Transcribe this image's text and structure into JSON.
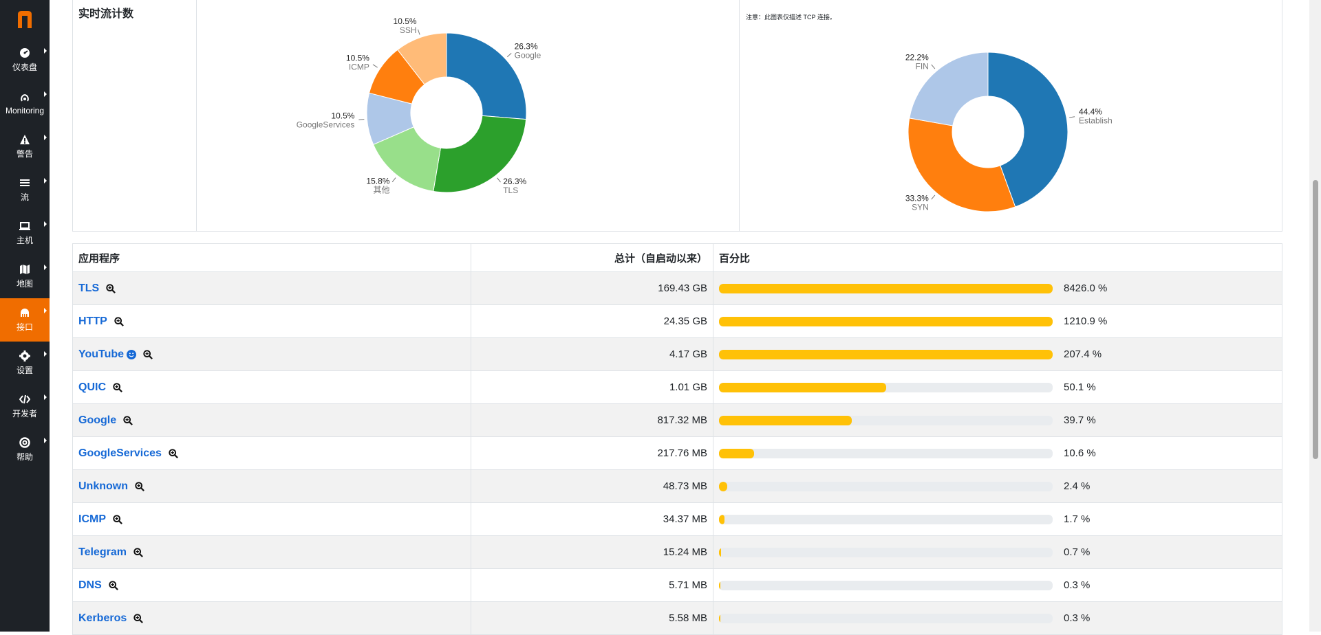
{
  "sidebar": {
    "logo_letter": "n",
    "items": [
      {
        "label": "仪表盘",
        "icon": "dashboard-icon",
        "active": false
      },
      {
        "label": "Monitoring",
        "icon": "monitoring-icon",
        "active": false
      },
      {
        "label": "警告",
        "icon": "warning-icon",
        "active": false
      },
      {
        "label": "流",
        "icon": "flows-icon",
        "active": false
      },
      {
        "label": "主机",
        "icon": "hosts-icon",
        "active": false
      },
      {
        "label": "地图",
        "icon": "map-icon",
        "active": false
      },
      {
        "label": "接口",
        "icon": "interface-icon",
        "active": true
      },
      {
        "label": "设置",
        "icon": "settings-icon",
        "active": false
      },
      {
        "label": "开发者",
        "icon": "developer-icon",
        "active": false
      },
      {
        "label": "帮助",
        "icon": "help-icon",
        "active": false
      }
    ]
  },
  "realtime": {
    "title": "实时流计数",
    "note": "注意：此图表仅描述 TCP 连接。"
  },
  "chart_data": [
    {
      "type": "pie",
      "variant": "donut",
      "slices": [
        {
          "label": "Google",
          "pct": 26.3,
          "pct_label": "26.3%",
          "color": "#1f77b4"
        },
        {
          "label": "TLS",
          "pct": 26.3,
          "pct_label": "26.3%",
          "color": "#2ca02c"
        },
        {
          "label": "其他",
          "pct": 15.8,
          "pct_label": "15.8%",
          "color": "#98df8a"
        },
        {
          "label": "GoogleServices",
          "pct": 10.5,
          "pct_label": "10.5%",
          "color": "#aec7e8"
        },
        {
          "label": "ICMP",
          "pct": 10.5,
          "pct_label": "10.5%",
          "color": "#ff7f0e"
        },
        {
          "label": "SSH",
          "pct": 10.5,
          "pct_label": "10.5%",
          "color": "#ffbb78"
        }
      ]
    },
    {
      "type": "pie",
      "variant": "donut",
      "slices": [
        {
          "label": "Established",
          "pct": 44.4,
          "pct_label": "44.4%",
          "color": "#1f77b4"
        },
        {
          "label": "SYN",
          "pct": 33.3,
          "pct_label": "33.3%",
          "color": "#ff7f0e"
        },
        {
          "label": "FIN",
          "pct": 22.2,
          "pct_label": "22.2%",
          "color": "#aec7e8"
        }
      ]
    }
  ],
  "table": {
    "headers": {
      "app": "应用程序",
      "total": "总计（自启动以来）",
      "percent": "百分比"
    },
    "rows": [
      {
        "name": "TLS",
        "total": "169.43 GB",
        "fill": 100,
        "percent": "8426.0 %",
        "smile": false
      },
      {
        "name": "HTTP",
        "total": "24.35 GB",
        "fill": 100,
        "percent": "1210.9 %",
        "smile": false
      },
      {
        "name": "YouTube",
        "total": "4.17 GB",
        "fill": 100,
        "percent": "207.4 %",
        "smile": true
      },
      {
        "name": "QUIC",
        "total": "1.01 GB",
        "fill": 50.1,
        "percent": "50.1 %",
        "smile": false
      },
      {
        "name": "Google",
        "total": "817.32 MB",
        "fill": 39.7,
        "percent": "39.7 %",
        "smile": false
      },
      {
        "name": "GoogleServices",
        "total": "217.76 MB",
        "fill": 10.6,
        "percent": "10.6 %",
        "smile": false
      },
      {
        "name": "Unknown",
        "total": "48.73 MB",
        "fill": 2.4,
        "percent": "2.4 %",
        "smile": false
      },
      {
        "name": "ICMP",
        "total": "34.37 MB",
        "fill": 1.7,
        "percent": "1.7 %",
        "smile": false
      },
      {
        "name": "Telegram",
        "total": "15.24 MB",
        "fill": 0.7,
        "percent": "0.7 %",
        "smile": false
      },
      {
        "name": "DNS",
        "total": "5.71 MB",
        "fill": 0.3,
        "percent": "0.3 %",
        "smile": false
      },
      {
        "name": "Kerberos",
        "total": "5.58 MB",
        "fill": 0.3,
        "percent": "0.3 %",
        "smile": false
      }
    ]
  }
}
